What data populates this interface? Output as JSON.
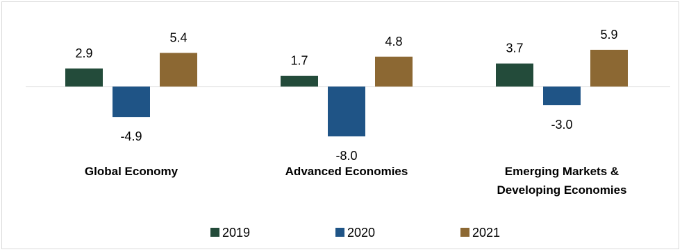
{
  "chart_data": {
    "type": "bar",
    "categories": [
      [
        "Global Economy"
      ],
      [
        "Advanced Economies"
      ],
      [
        "Emerging Markets &",
        "Developing Economies"
      ]
    ],
    "series": [
      {
        "name": "2019",
        "color": "#234b3a",
        "values": [
          2.9,
          1.7,
          3.7
        ]
      },
      {
        "name": "2020",
        "color": "#1f5486",
        "values": [
          -4.9,
          -8.0,
          -3.0
        ]
      },
      {
        "name": "2021",
        "color": "#8c6833",
        "values": [
          5.4,
          4.8,
          5.9
        ]
      }
    ],
    "ylim": [
      -10,
      7
    ],
    "grid": false,
    "legend_position": "bottom"
  }
}
